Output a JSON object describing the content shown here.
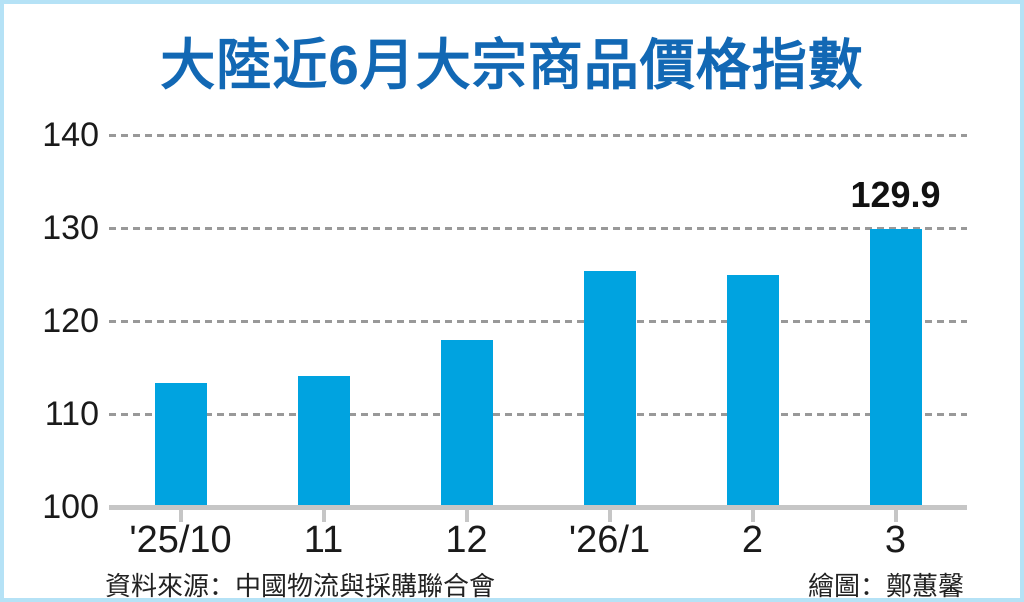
{
  "frame": {
    "border_color": "#b5e2f6",
    "background": "#ffffff"
  },
  "title": {
    "text": "大陸近6月大宗商品價格指數",
    "color": "#1268b4"
  },
  "footer": {
    "source": "資料來源：中國物流與採購聯合會",
    "credit": "繪圖：鄭蕙馨"
  },
  "chart_data": {
    "type": "bar",
    "title": "大陸近6月大宗商品價格指數",
    "categories": [
      "'25/10",
      "11",
      "12",
      "'26/1",
      "2",
      "3"
    ],
    "values": [
      113.3,
      114.1,
      118.0,
      125.4,
      125.0,
      129.9
    ],
    "xlabel": "",
    "ylabel": "",
    "ylim": [
      100,
      140
    ],
    "yticks": [
      100,
      110,
      120,
      130,
      140
    ],
    "grid": "horizontal-dashed",
    "legend": "none",
    "bar_color": "#00a3e0",
    "gridline_color": "#999999",
    "axis_color": "#c6c6c6",
    "data_labels": [
      {
        "index": 5,
        "text": "129.9"
      }
    ]
  }
}
